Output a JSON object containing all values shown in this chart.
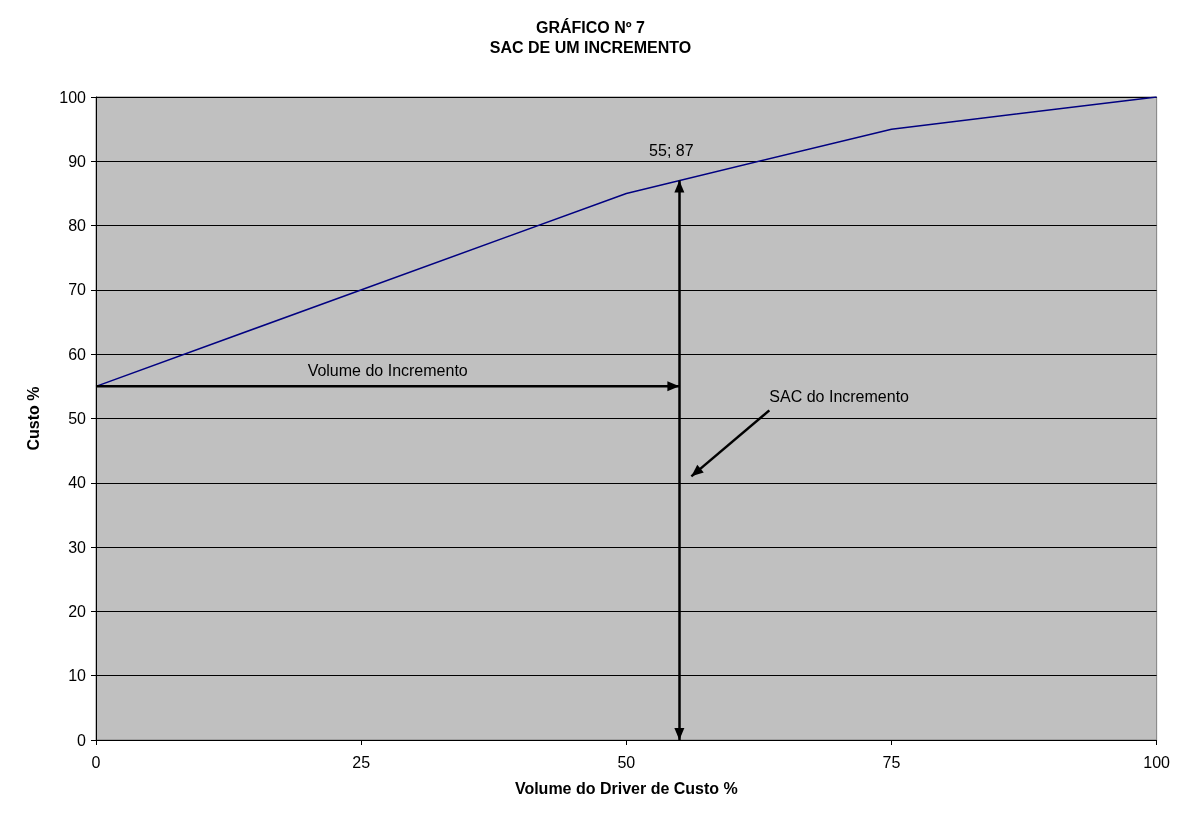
{
  "chart_data": {
    "type": "line",
    "title": "GRÁFICO Nº 7\nSAC DE UM INCREMENTO",
    "xlabel": "Volume do Driver de Custo %",
    "ylabel": "Custo %",
    "x": [
      0,
      50,
      75,
      100
    ],
    "series": [
      {
        "color": "#000080",
        "values": [
          55,
          85,
          95,
          100
        ]
      }
    ],
    "xlim": [
      0,
      100
    ],
    "xticks": [
      0,
      25,
      50,
      75,
      100
    ],
    "ylim": [
      0,
      100
    ],
    "yticks": [
      0,
      10,
      20,
      30,
      40,
      50,
      60,
      70,
      80,
      90,
      100
    ],
    "grid": "y",
    "marker": "none",
    "line_style": "solid",
    "ref_lines": [
      {
        "axis": "x",
        "value": 55,
        "color": "#000000"
      }
    ],
    "annotations": [
      {
        "text": "55; 87",
        "x": 55,
        "y": 87
      },
      "Volume do Incremento",
      "SAC do Incremento"
    ]
  }
}
